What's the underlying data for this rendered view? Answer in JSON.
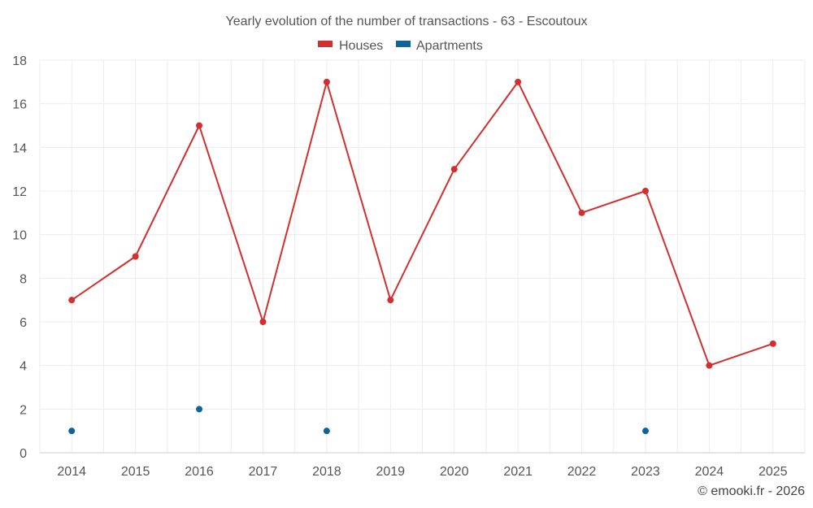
{
  "chart_data": {
    "type": "line",
    "title": "Yearly evolution of the number of transactions - 63 - Escoutoux",
    "categories": [
      "2014",
      "2015",
      "2016",
      "2017",
      "2018",
      "2019",
      "2020",
      "2021",
      "2022",
      "2023",
      "2024",
      "2025"
    ],
    "series": [
      {
        "name": "Houses",
        "color": "#d32f2f",
        "line": true,
        "values": [
          7,
          9,
          15,
          6,
          17,
          7,
          13,
          17,
          11,
          12,
          4,
          5
        ]
      },
      {
        "name": "Apartments",
        "color": "#0f6497",
        "line": false,
        "values": [
          1,
          null,
          2,
          null,
          1,
          null,
          null,
          null,
          null,
          1,
          null,
          null
        ]
      }
    ],
    "xlabel": "",
    "ylabel": "",
    "ylim": [
      0,
      18
    ],
    "yticks": [
      0,
      2,
      4,
      6,
      8,
      10,
      12,
      14,
      16,
      18
    ],
    "grid": true,
    "legend": "top-center"
  },
  "credit": "© emooki.fr - 2026"
}
